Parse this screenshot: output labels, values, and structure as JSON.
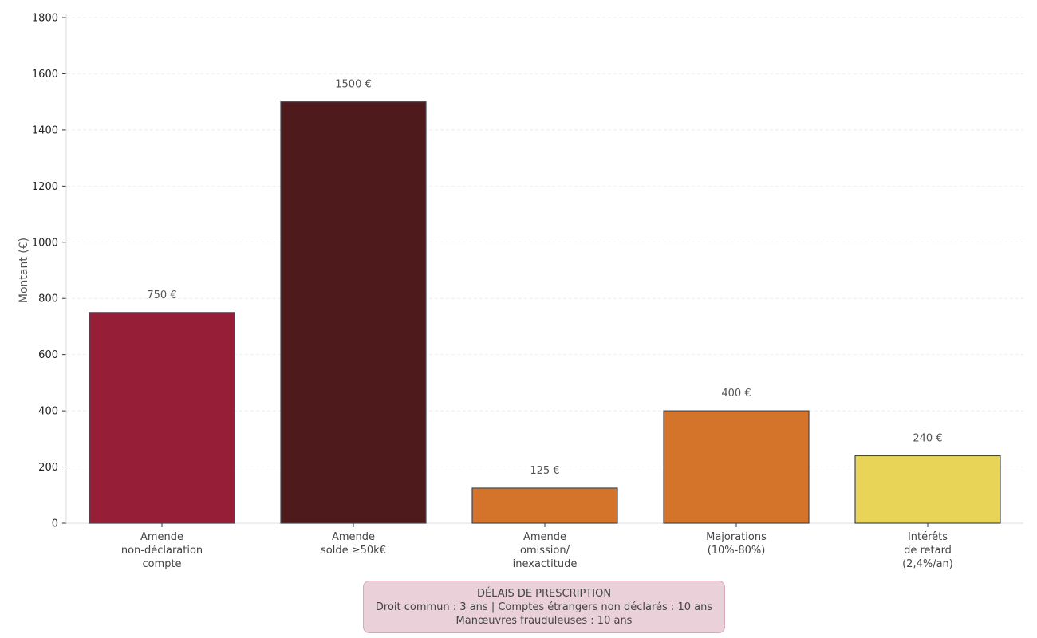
{
  "chart_data": {
    "type": "bar",
    "title": "",
    "xlabel": "",
    "ylabel": "Montant (€)",
    "ylim": [
      0,
      1800
    ],
    "yticks": [
      0,
      200,
      400,
      600,
      800,
      1000,
      1200,
      1400,
      1600,
      1800
    ],
    "grid": true,
    "categories": [
      [
        "Amende",
        "non-déclaration",
        "compte"
      ],
      [
        "Amende",
        "solde ≥50k€"
      ],
      [
        "Amende",
        "omission/",
        "inexactitude"
      ],
      [
        "Majorations",
        "(10%-80%)"
      ],
      [
        "Intérêts",
        "de retard",
        "(2,4%/an)"
      ]
    ],
    "values": [
      750,
      1500,
      125,
      400,
      240
    ],
    "data_labels": [
      "750 €",
      "1500 €",
      "125 €",
      "400 €",
      "240 €"
    ],
    "colors": [
      "#961e36",
      "#4e1a1b",
      "#d4742b",
      "#d4742b",
      "#e8d456"
    ],
    "edge_color": "#3e4a5a"
  },
  "note": {
    "title": "DÉLAIS DE PRESCRIPTION",
    "line1": "Droit commun : 3 ans | Comptes étrangers non déclarés : 10 ans",
    "line2": "Manœuvres frauduleuses : 10 ans"
  }
}
